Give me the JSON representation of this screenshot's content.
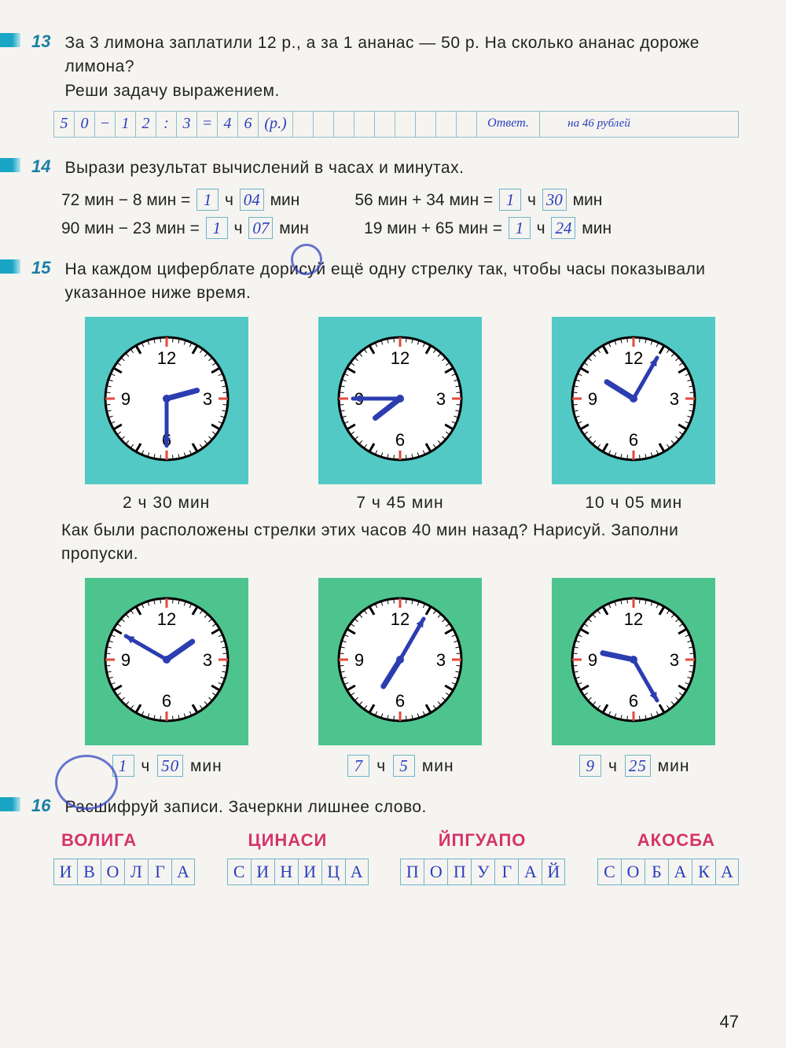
{
  "page_number": "47",
  "colors": {
    "accent": "#1a7fa3",
    "handwriting": "#2a3fbf",
    "cipher": "#d6336c",
    "clock_bg_top": "#52c9c5",
    "clock_bg_bottom": "#4dc48e",
    "grid_border": "#8fbfd0",
    "clock_hand": "#2c3db0",
    "clock_tick_red": "#e24a3b"
  },
  "task13": {
    "num": "13",
    "text": "За 3 лимона заплатили 12 р., а за 1 ананас — 50 р. На сколько ананас дороже лимона?",
    "sub": "Реши задачу выражением.",
    "solution_cells": [
      "5",
      "0",
      "−",
      "1",
      "2",
      ":",
      "3",
      "=",
      "4",
      "6",
      "(р.)",
      "",
      "",
      "",
      "",
      "",
      "",
      "",
      "",
      "",
      "",
      "",
      "О",
      "т",
      "в",
      "е",
      "т",
      ". на 46 рублей"
    ]
  },
  "task14": {
    "num": "14",
    "text": "Вырази результат вычислений в часах и минутах.",
    "eqs": [
      {
        "lhs": "72 мин − 8 мин =",
        "h": "1",
        "m": "04"
      },
      {
        "lhs": "56 мин + 34 мин =",
        "h": "1",
        "m": "30"
      },
      {
        "lhs": "90 мин − 23 мин =",
        "h": "1",
        "m": "07"
      },
      {
        "lhs": "19 мин + 65 мин =",
        "h": "1",
        "m": "24"
      }
    ]
  },
  "task15": {
    "num": "15",
    "text1": "На каждом циферблате дорисуй ещё одну стрелку так, чтобы часы показывали указанное ниже время.",
    "clocks_top": [
      {
        "caption": "2 ч 30 мин",
        "hour_angle": 75,
        "min_angle": 180
      },
      {
        "caption": "7 ч 45 мин",
        "hour_angle": 232,
        "min_angle": 270
      },
      {
        "caption": "10 ч 05 мин",
        "hour_angle": 302,
        "min_angle": 30
      }
    ],
    "text2": "Как были расположены стрелки этих часов 40 мин назад? Нарисуй. Заполни пропуски.",
    "clocks_bottom": [
      {
        "h": "1",
        "m": "50",
        "hour_angle": 55,
        "min_angle": 300
      },
      {
        "h": "7",
        "m": "5",
        "hour_angle": 212,
        "min_angle": 30
      },
      {
        "h": "9",
        "m": "25",
        "hour_angle": 282,
        "min_angle": 150
      }
    ],
    "u_h": "ч",
    "u_m": "мин"
  },
  "task16": {
    "num": "16",
    "text": "Расшифруй записи. Зачеркни лишнее слово.",
    "ciphers": [
      "ВОЛИГА",
      "ЦИНАСИ",
      "ЙПГУАПО",
      "АКОСБА"
    ],
    "decoded": [
      [
        "И",
        "В",
        "О",
        "Л",
        "Г",
        "А"
      ],
      [
        "С",
        "И",
        "Н",
        "И",
        "Ц",
        "А"
      ],
      [
        "П",
        "О",
        "П",
        "У",
        "Г",
        "А",
        "Й"
      ],
      [
        "С",
        "О",
        "Б",
        "А",
        "К",
        "А"
      ]
    ]
  }
}
